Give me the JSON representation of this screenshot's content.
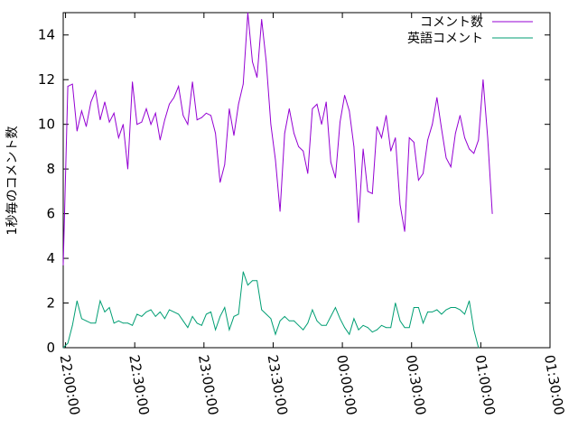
{
  "chart_data": {
    "type": "line",
    "title": "",
    "xlabel": "",
    "ylabel": "1秒毎のコメント数",
    "xlim": [
      "21:59:00",
      "01:30:00"
    ],
    "ylim": [
      0,
      15
    ],
    "xticks": [
      "22:00:00",
      "22:30:00",
      "23:00:00",
      "23:30:00",
      "00:00:00",
      "00:30:00",
      "01:00:00",
      "01:30:00"
    ],
    "yticks": [
      0,
      2,
      4,
      6,
      8,
      10,
      12,
      14
    ],
    "grid": false,
    "legend": "top-right",
    "sample_interval_minutes": 2,
    "x_start": "21:59:00",
    "series": [
      {
        "name": "コメント数",
        "color": "#9400d3",
        "values": [
          3.7,
          11.7,
          11.8,
          9.7,
          10.6,
          9.9,
          11.0,
          11.5,
          10.2,
          11.0,
          10.1,
          10.5,
          9.4,
          10.0,
          8.0,
          11.9,
          10.0,
          10.1,
          10.7,
          10.0,
          10.5,
          9.3,
          10.2,
          10.9,
          11.2,
          11.7,
          10.4,
          10.0,
          11.9,
          10.2,
          10.3,
          10.5,
          10.4,
          9.6,
          7.4,
          8.2,
          10.7,
          9.5,
          10.9,
          11.8,
          15.0,
          12.8,
          12.1,
          14.7,
          12.8,
          10.0,
          8.4,
          6.1,
          9.6,
          10.7,
          9.6,
          9.0,
          8.8,
          7.8,
          10.7,
          10.9,
          10.0,
          11.0,
          8.3,
          7.6,
          10.1,
          11.3,
          10.6,
          9.0,
          5.6,
          8.9,
          7.0,
          6.9,
          9.9,
          9.4,
          10.4,
          8.8,
          9.4,
          6.4,
          5.2,
          9.4,
          9.2,
          7.5,
          7.8,
          9.3,
          10.0,
          11.2,
          9.8,
          8.5,
          8.1,
          9.6,
          10.4,
          9.4,
          8.9,
          8.7,
          9.3,
          12.0,
          9.4,
          6.0
        ]
      },
      {
        "name": "英語コメント",
        "color": "#009e73",
        "values": [
          0.0,
          0.2,
          1.0,
          2.1,
          1.3,
          1.2,
          1.1,
          1.1,
          2.1,
          1.6,
          1.8,
          1.1,
          1.2,
          1.1,
          1.1,
          1.0,
          1.5,
          1.4,
          1.6,
          1.7,
          1.4,
          1.6,
          1.3,
          1.7,
          1.6,
          1.5,
          1.2,
          0.9,
          1.4,
          1.1,
          1.0,
          1.5,
          1.6,
          0.8,
          1.4,
          1.8,
          0.8,
          1.4,
          1.5,
          3.4,
          2.8,
          3.0,
          3.0,
          1.7,
          1.5,
          1.3,
          0.6,
          1.2,
          1.4,
          1.2,
          1.2,
          1.0,
          0.8,
          1.1,
          1.7,
          1.2,
          1.0,
          1.0,
          1.4,
          1.8,
          1.3,
          0.9,
          0.6,
          1.3,
          0.8,
          1.0,
          0.9,
          0.7,
          0.8,
          1.0,
          0.9,
          0.9,
          2.0,
          1.2,
          0.9,
          0.9,
          1.8,
          1.8,
          1.1,
          1.6,
          1.6,
          1.7,
          1.5,
          1.7,
          1.8,
          1.8,
          1.7,
          1.5,
          2.1,
          0.8,
          0.0
        ]
      }
    ]
  }
}
